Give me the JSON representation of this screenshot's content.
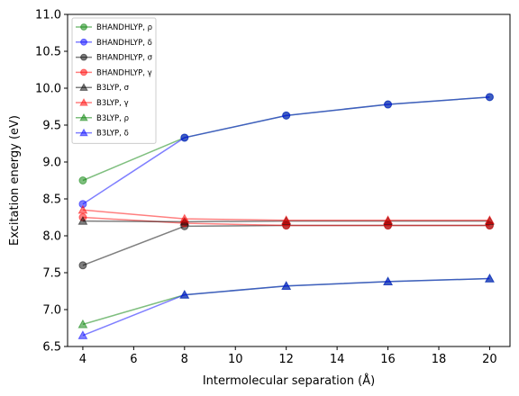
{
  "chart_data": {
    "type": "line",
    "xlabel": "Intermolecular separation (Å)",
    "ylabel": "Excitation energy (eV)",
    "xlim": [
      3.4,
      20.8
    ],
    "ylim": [
      6.5,
      11.0
    ],
    "xticks": [
      "4",
      "6",
      "8",
      "10",
      "12",
      "14",
      "16",
      "18",
      "20"
    ],
    "yticks": [
      "6.5",
      "7.0",
      "7.5",
      "8.0",
      "8.5",
      "9.0",
      "9.5",
      "10.0",
      "10.5",
      "11.0"
    ],
    "grid": false,
    "legend_position": "top-left",
    "x": [
      4,
      8,
      12,
      16,
      20
    ],
    "series": [
      {
        "name": "BHANDHLYP, ρ",
        "marker": "circle",
        "color": "#008000",
        "values": [
          8.75,
          9.33,
          9.63,
          9.78,
          9.88
        ]
      },
      {
        "name": "BHANDHLYP, δ",
        "marker": "circle",
        "color": "#0000ff",
        "values": [
          8.43,
          9.33,
          9.63,
          9.78,
          9.88
        ]
      },
      {
        "name": "BHANDHLYP, σ",
        "marker": "circle",
        "color": "#000000",
        "values": [
          7.6,
          8.13,
          8.14,
          8.14,
          8.14
        ]
      },
      {
        "name": "BHANDHLYP, γ",
        "marker": "circle",
        "color": "#ff0000",
        "values": [
          8.25,
          8.17,
          8.14,
          8.14,
          8.14
        ]
      },
      {
        "name": "B3LYP, σ",
        "marker": "triangle",
        "color": "#000000",
        "values": [
          8.2,
          8.19,
          8.2,
          8.2,
          8.2
        ]
      },
      {
        "name": "B3LYP, γ",
        "marker": "triangle",
        "color": "#ff0000",
        "values": [
          8.35,
          8.23,
          8.21,
          8.21,
          8.21
        ]
      },
      {
        "name": "B3LYP, ρ",
        "marker": "triangle",
        "color": "#008000",
        "values": [
          6.8,
          7.2,
          7.32,
          7.38,
          7.42
        ]
      },
      {
        "name": "B3LYP, δ",
        "marker": "triangle",
        "color": "#0000ff",
        "values": [
          6.65,
          7.2,
          7.32,
          7.38,
          7.42
        ]
      }
    ]
  }
}
